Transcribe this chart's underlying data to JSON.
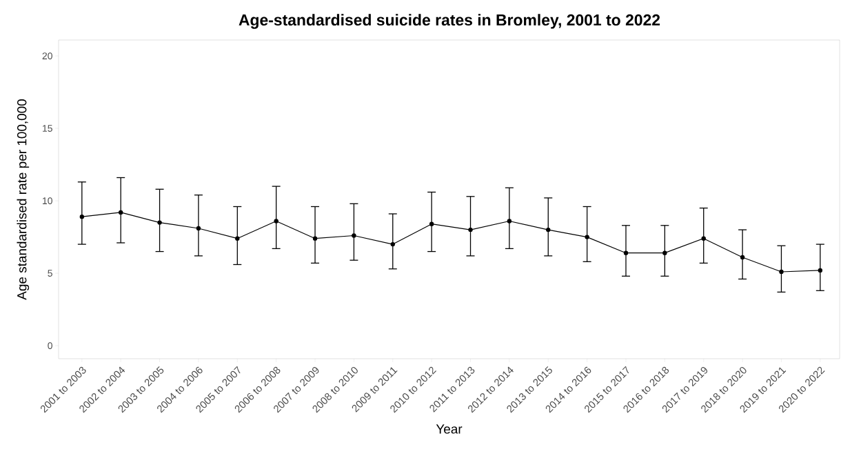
{
  "chart_data": {
    "type": "line",
    "title": "Age-standardised suicide rates in Bromley, 2001 to 2022",
    "xlabel": "Year",
    "ylabel": "Age standardised rate per 100,000",
    "categories": [
      "2001 to 2003",
      "2002 to 2004",
      "2003 to 2005",
      "2004 to 2006",
      "2005 to 2007",
      "2006 to 2008",
      "2007 to 2009",
      "2008 to 2010",
      "2009 to 2011",
      "2010 to 2012",
      "2011 to 2013",
      "2012 to 2014",
      "2013 to 2015",
      "2014 to 2016",
      "2015 to 2017",
      "2016 to 2018",
      "2017 to 2019",
      "2018 to 2020",
      "2019 to 2021",
      "2020 to 2022"
    ],
    "values": [
      8.9,
      9.2,
      8.5,
      8.1,
      7.4,
      8.6,
      7.4,
      7.6,
      7.0,
      8.4,
      8.0,
      8.6,
      8.0,
      7.5,
      6.4,
      6.4,
      7.4,
      6.1,
      5.1,
      5.2
    ],
    "errors": [
      [
        7.0,
        11.3
      ],
      [
        7.1,
        11.6
      ],
      [
        6.5,
        10.8
      ],
      [
        6.2,
        10.4
      ],
      [
        5.6,
        9.6
      ],
      [
        6.7,
        11.0
      ],
      [
        5.7,
        9.6
      ],
      [
        5.9,
        9.8
      ],
      [
        5.3,
        9.1
      ],
      [
        6.5,
        10.6
      ],
      [
        6.2,
        10.3
      ],
      [
        6.7,
        10.9
      ],
      [
        6.2,
        10.2
      ],
      [
        5.8,
        9.6
      ],
      [
        4.8,
        8.3
      ],
      [
        4.8,
        8.3
      ],
      [
        5.7,
        9.5
      ],
      [
        4.6,
        8.0
      ],
      [
        3.7,
        6.9
      ],
      [
        3.8,
        7.0
      ]
    ],
    "color": "#000000",
    "marker": "circle",
    "line_style": "solid",
    "grid": false,
    "ylim": [
      -0.9,
      21.1
    ],
    "yticks": [
      0,
      5,
      10,
      15,
      20
    ]
  }
}
